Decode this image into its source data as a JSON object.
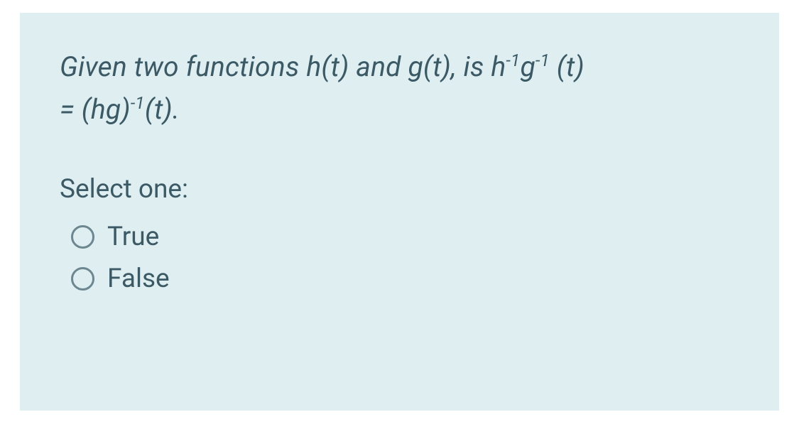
{
  "colors": {
    "card_bg": "#dfeef1",
    "text": "#3c5a66",
    "radio_border": "#6d8791",
    "page_bg": "#ffffff"
  },
  "question": {
    "line1_prefix": "Given two functions h(t) and g(t), is h",
    "sup1": "-1",
    "mid1": "g",
    "sup2": "-1",
    "mid2": " (t)",
    "line2_prefix": "= (hg)",
    "sup3": "-1",
    "line2_suffix": "(t)."
  },
  "select_prompt": "Select one:",
  "options": [
    {
      "id": "true",
      "label": "True",
      "selected": false
    },
    {
      "id": "false",
      "label": "False",
      "selected": false
    }
  ]
}
